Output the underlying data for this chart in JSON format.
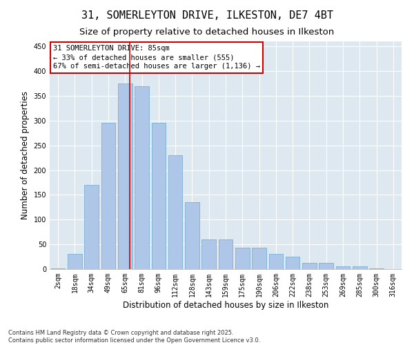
{
  "title": "31, SOMERLEYTON DRIVE, ILKESTON, DE7 4BT",
  "subtitle": "Size of property relative to detached houses in Ilkeston",
  "xlabel": "Distribution of detached houses by size in Ilkeston",
  "ylabel": "Number of detached properties",
  "bar_labels": [
    "2sqm",
    "18sqm",
    "34sqm",
    "49sqm",
    "65sqm",
    "81sqm",
    "96sqm",
    "112sqm",
    "128sqm",
    "143sqm",
    "159sqm",
    "175sqm",
    "190sqm",
    "206sqm",
    "222sqm",
    "238sqm",
    "253sqm",
    "269sqm",
    "285sqm",
    "300sqm",
    "316sqm"
  ],
  "bar_values": [
    2,
    30,
    170,
    295,
    375,
    370,
    295,
    230,
    135,
    60,
    60,
    43,
    43,
    30,
    25,
    13,
    12,
    6,
    5,
    2,
    0
  ],
  "bar_color": "#aec6e8",
  "bar_edge_color": "#7aafd4",
  "vline_x": 4.27,
  "annotation_lines": [
    "31 SOMERLEYTON DRIVE: 85sqm",
    "← 33% of detached houses are smaller (555)",
    "67% of semi-detached houses are larger (1,136) →"
  ],
  "vline_color": "#cc0000",
  "annotation_box_edgecolor": "#cc0000",
  "fig_facecolor": "#ffffff",
  "background_color": "#dde8f0",
  "grid_color": "#ffffff",
  "ylim": [
    0,
    460
  ],
  "yticks": [
    0,
    50,
    100,
    150,
    200,
    250,
    300,
    350,
    400,
    450
  ],
  "footnote": "Contains HM Land Registry data © Crown copyright and database right 2025.\nContains public sector information licensed under the Open Government Licence v3.0.",
  "title_fontsize": 11,
  "subtitle_fontsize": 9.5,
  "axis_label_fontsize": 8.5,
  "tick_fontsize": 7,
  "annotation_fontsize": 7.5,
  "footnote_fontsize": 6
}
